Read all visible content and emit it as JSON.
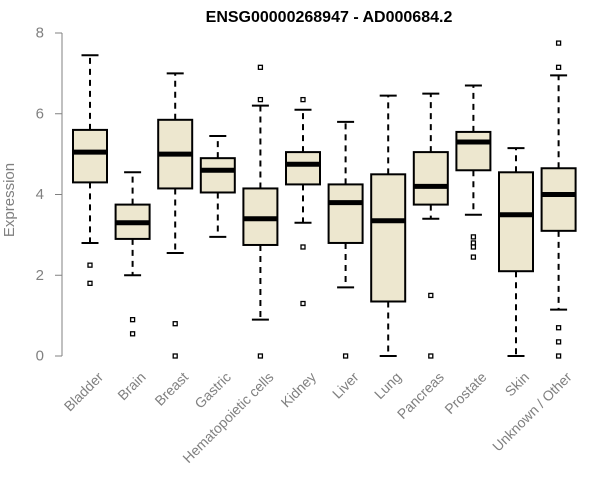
{
  "chart_data": {
    "type": "boxplot",
    "title": "ENSG00000268947 - AD000684.2",
    "xlabel": "",
    "ylabel": "Expression",
    "ylim": [
      0,
      8
    ],
    "yticks": [
      0,
      2,
      4,
      6,
      8
    ],
    "grid": false,
    "box_fill": "#ede7cf",
    "box_stroke": "#000000",
    "axis_color": "#808080",
    "categories": [
      "Bladder",
      "Brain",
      "Breast",
      "Gastric",
      "Hematopoietic cells",
      "Kidney",
      "Liver",
      "Lung",
      "Pancreas",
      "Prostate",
      "Skin",
      "Unknown / Other"
    ],
    "boxes": [
      {
        "min": 2.8,
        "q1": 4.3,
        "median": 5.05,
        "q3": 5.6,
        "max": 7.45,
        "outliers": [
          2.25,
          1.8
        ]
      },
      {
        "min": 2.0,
        "q1": 2.9,
        "median": 3.3,
        "q3": 3.75,
        "max": 4.55,
        "outliers": [
          0.9,
          0.55
        ]
      },
      {
        "min": 2.55,
        "q1": 4.15,
        "median": 5.0,
        "q3": 5.85,
        "max": 7.0,
        "outliers": [
          0.8,
          0.0
        ]
      },
      {
        "min": 2.95,
        "q1": 4.05,
        "median": 4.6,
        "q3": 4.9,
        "max": 5.45,
        "outliers": []
      },
      {
        "min": 0.9,
        "q1": 2.75,
        "median": 3.4,
        "q3": 4.15,
        "max": 6.2,
        "outliers": [
          7.15,
          6.35,
          0.0
        ]
      },
      {
        "min": 3.3,
        "q1": 4.25,
        "median": 4.75,
        "q3": 5.05,
        "max": 6.1,
        "outliers": [
          6.35,
          2.7,
          1.3
        ]
      },
      {
        "min": 1.7,
        "q1": 2.8,
        "median": 3.8,
        "q3": 4.25,
        "max": 5.8,
        "outliers": [
          0.0
        ]
      },
      {
        "min": 0.0,
        "q1": 1.35,
        "median": 3.35,
        "q3": 4.5,
        "max": 6.45,
        "outliers": []
      },
      {
        "min": 3.4,
        "q1": 3.75,
        "median": 4.2,
        "q3": 5.05,
        "max": 6.5,
        "outliers": [
          1.5,
          0.0
        ]
      },
      {
        "min": 3.5,
        "q1": 4.6,
        "median": 5.3,
        "q3": 5.55,
        "max": 6.7,
        "outliers": [
          2.95,
          2.8,
          2.7,
          2.45
        ]
      },
      {
        "min": 0.0,
        "q1": 2.1,
        "median": 3.5,
        "q3": 4.55,
        "max": 5.15,
        "outliers": []
      },
      {
        "min": 1.15,
        "q1": 3.1,
        "median": 4.0,
        "q3": 4.65,
        "max": 6.95,
        "outliers": [
          7.75,
          7.15,
          0.7,
          0.35,
          0.0
        ]
      }
    ]
  }
}
